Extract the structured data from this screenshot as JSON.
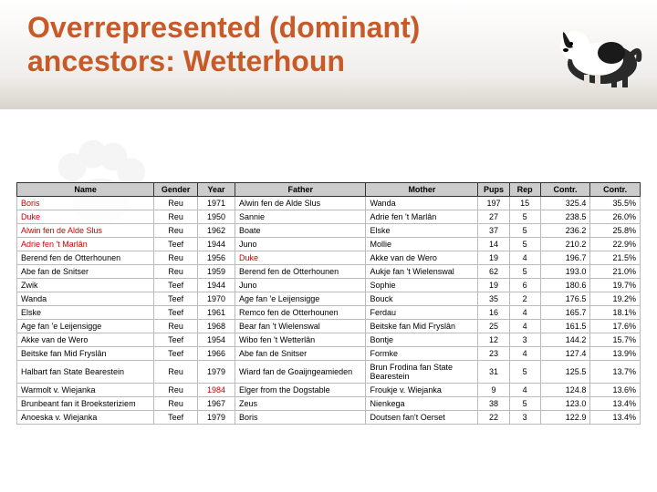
{
  "title": "Overrepresented (dominant) ancestors: Wetterhoun",
  "columns": [
    "Name",
    "Gender",
    "Year",
    "Father",
    "Mother",
    "Pups",
    "Rep",
    "Contr.",
    "Contr."
  ],
  "rows": [
    {
      "name": "Boris",
      "red": true,
      "gender": "Reu",
      "year": "1971",
      "father": "Alwin fen de Alde Slus",
      "mother": "Wanda",
      "pups": "197",
      "rep": "15",
      "contr": "325.4",
      "contrp": "35.5%"
    },
    {
      "name": "Duke",
      "red": true,
      "gender": "Reu",
      "year": "1950",
      "father": "Sannie",
      "mother": "Adrie fen 't Marlân",
      "pups": "27",
      "rep": "5",
      "contr": "238.5",
      "contrp": "26.0%"
    },
    {
      "name": "Alwin fen de Alde Slus",
      "red": true,
      "gender": "Reu",
      "year": "1962",
      "father": "Boate",
      "mother": "Elske",
      "pups": "37",
      "rep": "5",
      "contr": "236.2",
      "contrp": "25.8%"
    },
    {
      "name": "Adrie fen 't Marlân",
      "red": true,
      "gender": "Teef",
      "year": "1944",
      "father": "Juno",
      "mother": "Mollie",
      "pups": "14",
      "rep": "5",
      "contr": "210.2",
      "contrp": "22.9%"
    },
    {
      "name": "Berend fen de Otterhounen",
      "red": false,
      "gender": "Reu",
      "year": "1956",
      "father": "Duke",
      "fred": true,
      "mother": "Akke van de Wero",
      "pups": "19",
      "rep": "4",
      "contr": "196.7",
      "contrp": "21.5%"
    },
    {
      "name": "Abe fan de Snitser",
      "red": false,
      "gender": "Reu",
      "year": "1959",
      "father": "Berend fen de Otterhounen",
      "mother": "Aukje fan 't Wielenswal",
      "pups": "62",
      "rep": "5",
      "contr": "193.0",
      "contrp": "21.0%"
    },
    {
      "name": "Zwik",
      "red": false,
      "gender": "Teef",
      "year": "1944",
      "father": "Juno",
      "mother": "Sophie",
      "pups": "19",
      "rep": "6",
      "contr": "180.6",
      "contrp": "19.7%"
    },
    {
      "name": "Wanda",
      "red": false,
      "gender": "Teef",
      "year": "1970",
      "father": "Age fan 'e Leijensigge",
      "mother": "Bouck",
      "pups": "35",
      "rep": "2",
      "contr": "176.5",
      "contrp": "19.2%"
    },
    {
      "name": "Elske",
      "red": false,
      "gender": "Teef",
      "year": "1961",
      "father": "Remco fen de Otterhounen",
      "mother": "Ferdau",
      "pups": "16",
      "rep": "4",
      "contr": "165.7",
      "contrp": "18.1%"
    },
    {
      "name": "Age fan 'e Leijensigge",
      "red": false,
      "gender": "Reu",
      "year": "1968",
      "father": "Bear fan 't Wielenswal",
      "mother": "Beitske fan Mid Fryslân",
      "pups": "25",
      "rep": "4",
      "contr": "161.5",
      "contrp": "17.6%"
    },
    {
      "name": "Akke van de Wero",
      "red": false,
      "gender": "Teef",
      "year": "1954",
      "father": "Wibo fen 't Wetterlân",
      "mother": "Bontje",
      "pups": "12",
      "rep": "3",
      "contr": "144.2",
      "contrp": "15.7%"
    },
    {
      "name": "Beitske fan Mid Fryslân",
      "red": false,
      "gender": "Teef",
      "year": "1966",
      "father": "Abe fan de Snitser",
      "mother": "Formke",
      "pups": "23",
      "rep": "4",
      "contr": "127.4",
      "contrp": "13.9%"
    },
    {
      "name": "Halbart fan State Bearestein",
      "red": false,
      "gender": "Reu",
      "year": "1979",
      "father": "Wiard fan de Goaijngeamieden",
      "mother": "Brun Frodina fan State Bearestein",
      "pups": "31",
      "rep": "5",
      "contr": "125.5",
      "contrp": "13.7%"
    },
    {
      "name": "Warmolt v. Wiejanka",
      "red": false,
      "gender": "Reu",
      "year": "1984",
      "yred": true,
      "father": "Elger from the Dogstable",
      "mother": "Froukje v. Wiejanka",
      "pups": "9",
      "rep": "4",
      "contr": "124.8",
      "contrp": "13.6%"
    },
    {
      "name": "Brunbeant fan it Broeksteriziem",
      "red": false,
      "gender": "Reu",
      "year": "1967",
      "father": "Zeus",
      "mother": "Nienkega",
      "pups": "38",
      "rep": "5",
      "contr": "123.0",
      "contrp": "13.4%"
    },
    {
      "name": "Anoeska v. Wiejanka",
      "red": false,
      "gender": "Teef",
      "year": "1979",
      "father": "Boris",
      "mother": "Doutsen fan't Oerset",
      "pups": "22",
      "rep": "3",
      "contr": "122.9",
      "contrp": "13.4%"
    }
  ]
}
